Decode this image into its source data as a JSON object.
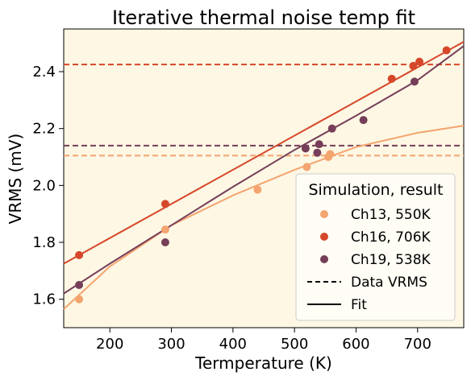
{
  "chart_data": {
    "type": "scatter",
    "title": "Iterative thermal noise temp fit",
    "xlabel": "Termperature (K)",
    "ylabel": "VRMS (mV)",
    "xlim": [
      125,
      775
    ],
    "ylim": [
      1.5,
      2.55
    ],
    "xticks": [
      200,
      300,
      400,
      500,
      600,
      700
    ],
    "yticks": [
      1.6,
      1.8,
      2.0,
      2.2,
      2.4
    ],
    "xtick_labels": [
      "200",
      "300",
      "400",
      "500",
      "600",
      "700"
    ],
    "ytick_labels": [
      "1.6",
      "1.8",
      "2.0",
      "2.2",
      "2.4"
    ],
    "grid": false,
    "legend_title": "Simulation, result",
    "legend_position": "lower right",
    "series": [
      {
        "name": "Ch13, 550K",
        "color": "#f4a46e",
        "x": [
          150,
          290,
          440,
          520,
          555,
          558
        ],
        "y": [
          1.6,
          1.845,
          1.985,
          2.065,
          2.1,
          2.11
        ],
        "data_vrms": 2.105,
        "fit_points": [
          [
            125,
            1.565
          ],
          [
            200,
            1.715
          ],
          [
            300,
            1.86
          ],
          [
            400,
            1.965
          ],
          [
            500,
            2.055
          ],
          [
            600,
            2.135
          ],
          [
            700,
            2.185
          ],
          [
            775,
            2.21
          ]
        ]
      },
      {
        "name": "Ch16, 706K",
        "color": "#d6472a",
        "x": [
          150,
          290,
          658,
          693,
          703,
          747
        ],
        "y": [
          1.755,
          1.935,
          2.375,
          2.42,
          2.435,
          2.475
        ],
        "data_vrms": 2.425,
        "fit_points": [
          [
            125,
            1.725
          ],
          [
            775,
            2.505
          ]
        ]
      },
      {
        "name": "Ch19, 538K",
        "color": "#763e59",
        "x": [
          150,
          290,
          518,
          537,
          540,
          561,
          612,
          695
        ],
        "y": [
          1.65,
          1.8,
          2.13,
          2.115,
          2.145,
          2.2,
          2.23,
          2.365
        ],
        "data_vrms": 2.14,
        "fit_points": [
          [
            125,
            1.62
          ],
          [
            200,
            1.725
          ],
          [
            300,
            1.86
          ],
          [
            400,
            1.995
          ],
          [
            500,
            2.125
          ],
          [
            600,
            2.245
          ],
          [
            700,
            2.37
          ],
          [
            775,
            2.49
          ]
        ]
      }
    ],
    "legend_extra": [
      "Data VRMS",
      "Fit"
    ],
    "plot_background": "#fdf7e4"
  }
}
